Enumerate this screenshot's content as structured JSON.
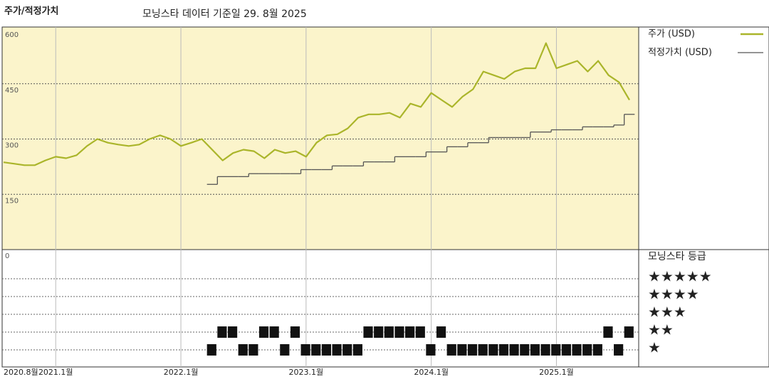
{
  "chart_data": {
    "type": "line",
    "title": "주가/적정가치",
    "subtitle": "모닝스타 데이터 기준일 29. 8월 2025",
    "categories": [
      "2020.8월",
      null,
      null,
      null,
      null,
      "2021.1월",
      null,
      null,
      null,
      null,
      null,
      null,
      null,
      null,
      null,
      null,
      null,
      "2022.1월",
      null,
      null,
      null,
      null,
      null,
      null,
      null,
      null,
      null,
      null,
      null,
      "2023.1월",
      null,
      null,
      null,
      null,
      null,
      null,
      null,
      null,
      null,
      null,
      null,
      "2024.1월",
      null,
      null,
      null,
      null,
      null,
      null,
      null,
      null,
      null,
      null,
      null,
      "2025.1월",
      null,
      null,
      null,
      null,
      null,
      null,
      null
    ],
    "series": [
      {
        "name": "주가 (USD)",
        "color": "#aab52a",
        "values": [
          237,
          233,
          229,
          229,
          242,
          252,
          248,
          256,
          281,
          300,
          290,
          285,
          281,
          285,
          300,
          310,
          300,
          281,
          290,
          300,
          271,
          242,
          262,
          271,
          267,
          248,
          271,
          262,
          267,
          252,
          290,
          310,
          313,
          329,
          358,
          367,
          367,
          371,
          358,
          396,
          387,
          425,
          406,
          387,
          415,
          435,
          483,
          473,
          463,
          483,
          492,
          492,
          560,
          492,
          502,
          512,
          483,
          512,
          473,
          454,
          406
        ]
      },
      {
        "name": "적정가치 (USD)",
        "color": "#555555",
        "step": true,
        "values": [
          null,
          null,
          null,
          null,
          null,
          null,
          null,
          null,
          null,
          null,
          null,
          null,
          null,
          null,
          null,
          null,
          null,
          null,
          null,
          null,
          177,
          198,
          198,
          198,
          206,
          206,
          206,
          206,
          206,
          217,
          217,
          217,
          227,
          227,
          227,
          238,
          238,
          238,
          252,
          252,
          252,
          265,
          265,
          279,
          279,
          290,
          290,
          304,
          304,
          304,
          304,
          319,
          319,
          325,
          325,
          325,
          333,
          333,
          333,
          338,
          367
        ]
      }
    ],
    "ylim": [
      0,
      600
    ],
    "yticks": [
      0,
      150,
      300,
      450,
      600
    ],
    "grid": true,
    "background": "#fbf4cb",
    "rating": {
      "title": "모닝스타 등급",
      "labels": [
        "★★★★★",
        "★★★★",
        "★★★",
        "★★",
        "★"
      ],
      "levels": [
        5,
        4,
        3,
        2,
        1
      ],
      "color": "#111111",
      "values": [
        null,
        null,
        null,
        null,
        null,
        null,
        null,
        null,
        null,
        null,
        null,
        null,
        null,
        null,
        null,
        null,
        null,
        null,
        null,
        null,
        1,
        2,
        2,
        1,
        1,
        2,
        2,
        1,
        2,
        1,
        1,
        1,
        1,
        1,
        1,
        2,
        2,
        2,
        2,
        2,
        2,
        1,
        2,
        1,
        1,
        1,
        1,
        1,
        1,
        1,
        1,
        1,
        1,
        1,
        1,
        1,
        1,
        1,
        2,
        1,
        2
      ]
    }
  }
}
